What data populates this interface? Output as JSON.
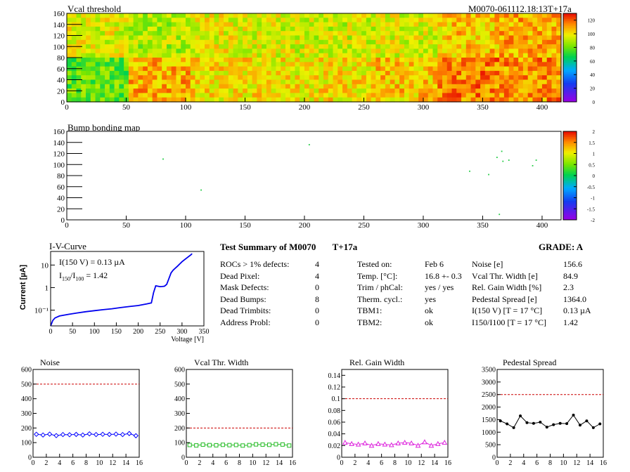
{
  "vcal_map": {
    "title": "Vcal threshold",
    "module_label": "M0070-061112.18:13T+17a",
    "xticks": [
      "0",
      "50",
      "100",
      "150",
      "200",
      "250",
      "300",
      "350",
      "400"
    ],
    "yticks": [
      "0",
      "20",
      "40",
      "60",
      "80",
      "100",
      "120",
      "140",
      "160"
    ],
    "xlim": [
      0,
      416
    ],
    "ylim": [
      0,
      160
    ],
    "colorbar_ticks": [
      "0",
      "20",
      "40",
      "60",
      "80",
      "100",
      "120"
    ],
    "colorbar_range": [
      0,
      130
    ]
  },
  "bump_map": {
    "title": "Bump bonding map",
    "xticks": [
      "0",
      "50",
      "100",
      "150",
      "200",
      "250",
      "300",
      "350",
      "400"
    ],
    "yticks": [
      "0",
      "20",
      "40",
      "60",
      "80",
      "100",
      "120",
      "140",
      "160"
    ],
    "colorbar_ticks": [
      "-2",
      "-1.5",
      "-1",
      "-0.5",
      "0",
      "0.5",
      "1",
      "1.5",
      "2"
    ],
    "colorbar_range": [
      -2,
      2
    ]
  },
  "iv_curve": {
    "title": "I-V-Curve",
    "xlabel": "Voltage [V]",
    "ylabel": "Current [µA]",
    "xticks": [
      "0",
      "50",
      "100",
      "150",
      "200",
      "250",
      "300",
      "350"
    ],
    "yticks": [
      "10⁻¹",
      "1",
      "10"
    ],
    "annotation_current": "I(150 V) = 0.13 µA",
    "annotation_ratio_label": "I",
    "annotation_ratio_sub1": "150",
    "annotation_ratio_sub2": "100",
    "annotation_ratio_value": "=  1.42"
  },
  "summary": {
    "title": "Test Summary of M0070",
    "suffix": "T+17a",
    "grade": "GRADE:  A",
    "left": [
      {
        "label": "ROCs > 1% defects:",
        "value": "4"
      },
      {
        "label": "Dead Pixel:",
        "value": "4"
      },
      {
        "label": "Mask Defects:",
        "value": "0"
      },
      {
        "label": "Dead Bumps:",
        "value": "8"
      },
      {
        "label": "Dead Trimbits:",
        "value": "0"
      },
      {
        "label": "Address Probl:",
        "value": "0"
      }
    ],
    "middle": [
      {
        "label": "Tested on:",
        "value": "Feb 6"
      },
      {
        "label": "Temp. [°C]:",
        "value": "16.8 +- 0.3"
      },
      {
        "label": "Trim / phCal:",
        "value": "yes / yes"
      },
      {
        "label": "Therm. cycl.:",
        "value": "yes"
      },
      {
        "label": "TBM1:",
        "value": "ok"
      },
      {
        "label": "TBM2:",
        "value": "ok"
      }
    ],
    "right": [
      {
        "label": "Noise [e]",
        "value": "156.6"
      },
      {
        "label": "Vcal Thr. Width [e]",
        "value": "84.9"
      },
      {
        "label": "Rel. Gain Width [%]",
        "value": "2.3"
      },
      {
        "label": "Pedestal Spread [e]",
        "value": "1364.0"
      },
      {
        "label": "I(150 V) [T = 17 °C]",
        "value": "0.13 µA"
      },
      {
        "label": "I150/I100  [T = 17 °C]",
        "value": "1.42"
      }
    ]
  },
  "chart_data": [
    {
      "type": "heatmap",
      "title": "Vcal threshold",
      "xlim": [
        0,
        416
      ],
      "ylim": [
        0,
        160
      ],
      "zlim": [
        0,
        130
      ],
      "roc_mean_values": [
        [
          95,
          88,
          96,
          94,
          92,
          95,
          104,
          108
        ],
        [
          78,
          108,
          100,
          99,
          100,
          104,
          114,
          112
        ]
      ]
    },
    {
      "type": "scatter",
      "title": "Bump bonding map",
      "xlim": [
        0,
        416
      ],
      "ylim": [
        0,
        160
      ],
      "x": [
        81,
        113,
        204,
        339,
        355,
        362,
        364,
        366,
        367,
        372,
        392,
        395
      ],
      "y": [
        110,
        54,
        136,
        88,
        82,
        113,
        10,
        124,
        106,
        108,
        98,
        108
      ]
    },
    {
      "type": "line",
      "title": "I-V-Curve",
      "xlabel": "Voltage [V]",
      "ylabel": "Current [µA]",
      "yscale": "log",
      "xlim": [
        0,
        350
      ],
      "ylim": [
        0.02,
        40
      ],
      "x": [
        0,
        5,
        10,
        20,
        40,
        60,
        80,
        100,
        120,
        140,
        160,
        180,
        200,
        220,
        230,
        235,
        240,
        245,
        250,
        255,
        260,
        265,
        270,
        275,
        280,
        290,
        300,
        310,
        320,
        323
      ],
      "y": [
        0.02,
        0.035,
        0.045,
        0.055,
        0.065,
        0.075,
        0.085,
        0.095,
        0.105,
        0.115,
        0.13,
        0.145,
        0.16,
        0.19,
        0.21,
        0.6,
        1.2,
        1.15,
        1.1,
        1.12,
        1.15,
        1.4,
        2.5,
        4.5,
        6.0,
        9.0,
        14.0,
        20.0,
        28.0,
        32.0
      ]
    },
    {
      "type": "line",
      "title": "Noise",
      "xlim": [
        0,
        16
      ],
      "ylim": [
        0,
        600
      ],
      "yticks": [
        0,
        100,
        200,
        300,
        400,
        500,
        600
      ],
      "limit": 500,
      "color": "#0000ff",
      "marker": "diamond",
      "x": [
        0.5,
        1.5,
        2.5,
        3.5,
        4.5,
        5.5,
        6.5,
        7.5,
        8.5,
        9.5,
        10.5,
        11.5,
        12.5,
        13.5,
        14.5,
        15.5
      ],
      "y": [
        157,
        152,
        158,
        148,
        155,
        154,
        156,
        152,
        160,
        155,
        157,
        156,
        158,
        155,
        162,
        147
      ]
    },
    {
      "type": "line",
      "title": "Vcal Thr. Width",
      "xlim": [
        0,
        16
      ],
      "ylim": [
        0,
        600
      ],
      "yticks": [
        0,
        100,
        200,
        300,
        400,
        500,
        600
      ],
      "limit": 200,
      "color": "#22bb22",
      "marker": "square",
      "x": [
        0.5,
        1.5,
        2.5,
        3.5,
        4.5,
        5.5,
        6.5,
        7.5,
        8.5,
        9.5,
        10.5,
        11.5,
        12.5,
        13.5,
        14.5,
        15.5
      ],
      "y": [
        84,
        81,
        86,
        83,
        82,
        85,
        83,
        84,
        80,
        83,
        88,
        86,
        85,
        89,
        87,
        80
      ]
    },
    {
      "type": "line",
      "title": "Rel. Gain Width",
      "xlim": [
        0,
        16
      ],
      "ylim": [
        0,
        0.15
      ],
      "yticks": [
        0,
        0.02,
        0.04,
        0.06,
        0.08,
        0.1,
        0.12,
        0.14
      ],
      "limit": 0.1,
      "color": "#dd22dd",
      "marker": "triangle",
      "x": [
        0.5,
        1.5,
        2.5,
        3.5,
        4.5,
        5.5,
        6.5,
        7.5,
        8.5,
        9.5,
        10.5,
        11.5,
        12.5,
        13.5,
        14.5,
        15.5
      ],
      "y": [
        0.025,
        0.023,
        0.022,
        0.024,
        0.02,
        0.023,
        0.022,
        0.021,
        0.024,
        0.025,
        0.024,
        0.02,
        0.026,
        0.02,
        0.023,
        0.025
      ]
    },
    {
      "type": "line",
      "title": "Pedestal Spread",
      "xlim": [
        0,
        16
      ],
      "ylim": [
        0,
        3500
      ],
      "yticks": [
        0,
        500,
        1000,
        1500,
        2000,
        2500,
        3000,
        3500
      ],
      "limit": 2500,
      "color": "#000000",
      "marker": "circle",
      "x": [
        0.5,
        1.5,
        2.5,
        3.5,
        4.5,
        5.5,
        6.5,
        7.5,
        8.5,
        9.5,
        10.5,
        11.5,
        12.5,
        13.5,
        14.5,
        15.5
      ],
      "y": [
        1450,
        1330,
        1180,
        1650,
        1380,
        1350,
        1400,
        1200,
        1300,
        1350,
        1340,
        1680,
        1280,
        1450,
        1180,
        1330
      ]
    }
  ]
}
